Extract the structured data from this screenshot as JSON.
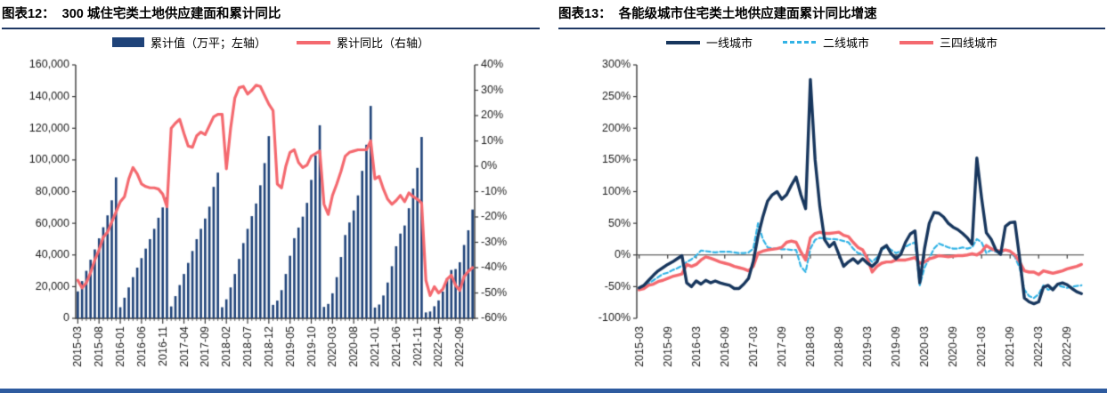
{
  "chart12": {
    "label": "图表12：",
    "title": "300 城住宅类土地供应建面和累计同比",
    "legend": [
      {
        "label": "累计值（万平；左轴）",
        "type": "bar",
        "color": "#1f4379"
      },
      {
        "label": "累计同比（右轴）",
        "type": "line",
        "color": "#f4696f"
      }
    ]
  },
  "chart13": {
    "label": "图表13：",
    "title": "各能级城市住宅类土地供应建面累计同比增速",
    "legend": [
      {
        "label": "一线城市",
        "type": "line",
        "color": "#17365d"
      },
      {
        "label": "二线城市",
        "type": "dash",
        "color": "#33b3e5"
      },
      {
        "label": "三四线城市",
        "type": "line",
        "color": "#f4696f"
      }
    ]
  },
  "accent_colors": {
    "bar_navy": "#1f4379",
    "line_red": "#f4696f",
    "line_navy": "#17365d",
    "line_cyan": "#33b3e5",
    "header_rule": "#1f3864",
    "footer_rule": "#2e5b9f"
  },
  "chart_data": [
    {
      "type": "bar",
      "title": "300 城住宅类土地供应建面和累计同比",
      "x_start": "2015-03",
      "x_end": "2022-12",
      "n_points": 94,
      "x_tick_every": 5,
      "x_tick_labels": [
        "2015-03",
        "2015-08",
        "2016-01",
        "2016-06",
        "2016-11",
        "2017-04",
        "2017-09",
        "2018-02",
        "2018-07",
        "2018-12",
        "2019-05",
        "2019-10",
        "2020-03",
        "2020-08",
        "2021-01",
        "2021-06",
        "2021-11",
        "2022-04",
        "2022-09"
      ],
      "y_left": {
        "label": "累计值（万平）",
        "min": 0,
        "max": 160000,
        "tick_labels": [
          "160,000",
          "140,000",
          "120,000",
          "100,000",
          "80,000",
          "60,000",
          "40,000",
          "20,000",
          "0"
        ]
      },
      "y_right": {
        "label": "累计同比",
        "min": -60,
        "max": 40,
        "tick_labels": [
          "40%",
          "30%",
          "20%",
          "10%",
          "0%",
          "-10%",
          "-20%",
          "-30%",
          "-40%",
          "-50%",
          "-60%"
        ]
      },
      "series": [
        {
          "name": "累计值（万平；左轴）",
          "type": "bar",
          "axis": "left",
          "color": "#1f4379",
          "values": [
            17000,
            23500,
            30000,
            37000,
            43500,
            50500,
            57500,
            65000,
            74500,
            89000,
            7000,
            13000,
            19500,
            26000,
            32000,
            38000,
            44000,
            50000,
            56500,
            63500,
            70000,
            76500,
            7500,
            14000,
            21000,
            28000,
            35000,
            42500,
            50000,
            56500,
            63000,
            70500,
            83000,
            92000,
            7000,
            12000,
            19500,
            28000,
            37500,
            47500,
            56500,
            64500,
            72500,
            84000,
            98000,
            115000,
            8500,
            11200,
            17800,
            28000,
            39500,
            50600,
            57300,
            64200,
            72900,
            87400,
            102900,
            121900,
            7200,
            9100,
            15800,
            26000,
            38700,
            52600,
            60500,
            68100,
            77600,
            93100,
            109600,
            134100,
            6800,
            8700,
            14400,
            22600,
            32900,
            45500,
            53500,
            58600,
            69500,
            81900,
            95000,
            114500,
            3700,
            4300,
            7600,
            11300,
            16900,
            25300,
            30500,
            31100,
            35400,
            46300,
            55600,
            68700
          ]
        },
        {
          "name": "累计同比（右轴）",
          "type": "line",
          "axis": "right",
          "color": "#f4696f",
          "values": [
            -45,
            -48,
            -46,
            -42,
            -37,
            -33,
            -28,
            -26,
            -22,
            -18,
            -14,
            -12,
            -5,
            -0.5,
            -3,
            -7,
            -8,
            -8.5,
            -8.5,
            -9,
            -11,
            -16,
            15,
            17,
            18.5,
            13,
            8,
            7.5,
            12,
            13.5,
            12.5,
            16,
            19.5,
            20.5,
            20.5,
            -1,
            15,
            27,
            31,
            31.5,
            28.5,
            30,
            32,
            31.5,
            28,
            24.5,
            22,
            -7,
            -8.5,
            0,
            5.5,
            6.5,
            1.5,
            -0.5,
            0.5,
            4,
            5,
            6,
            -15,
            -19,
            -11.5,
            -7,
            -2,
            4,
            5.5,
            6,
            6.5,
            6.5,
            6.5,
            10,
            -5,
            -4,
            -9,
            -13,
            -15,
            -13.5,
            -11.5,
            -14,
            -10.5,
            -12,
            -13,
            -14.5,
            -45,
            -51,
            -47.5,
            -50,
            -48.5,
            -44.5,
            -43,
            -47,
            -49,
            -43.5,
            -41.5,
            -40
          ]
        }
      ]
    },
    {
      "type": "line",
      "title": "各能级城市住宅类土地供应建面累计同比增速",
      "x_start": "2015-03",
      "x_end": "2022-12",
      "n_points": 94,
      "x_tick_every": 6,
      "x_tick_labels": [
        "2015-03",
        "2015-09",
        "2016-03",
        "2016-09",
        "2017-03",
        "2017-09",
        "2018-03",
        "2018-09",
        "2019-03",
        "2019-09",
        "2020-03",
        "2020-09",
        "2021-03",
        "2021-09",
        "2022-03",
        "2022-09"
      ],
      "ylim": [
        -100,
        300
      ],
      "y_tick_labels": [
        "300%",
        "250%",
        "200%",
        "150%",
        "100%",
        "50%",
        "0%",
        "-50%",
        "-100%"
      ],
      "series": [
        {
          "name": "一线城市",
          "color": "#17365d",
          "dash": false,
          "values": [
            -52,
            -48,
            -40,
            -32,
            -25,
            -20,
            -15,
            -11,
            -6,
            -1,
            -44,
            -50,
            -41,
            -46,
            -40,
            -44,
            -41,
            -44,
            -46,
            -48,
            -53,
            -53,
            -46,
            -37,
            -10,
            30,
            60,
            85,
            95,
            100,
            88,
            95,
            110,
            123,
            95,
            73,
            277,
            150,
            76,
            24,
            13,
            20,
            1,
            -18,
            -11,
            -6,
            -13,
            -6,
            -13,
            -18,
            -11,
            10,
            15,
            2,
            -6,
            1,
            20,
            33,
            38,
            -44,
            10,
            50,
            67,
            66,
            60,
            50,
            44,
            40,
            34,
            27,
            17,
            153,
            90,
            35,
            25,
            8,
            1,
            45,
            51,
            52,
            -5,
            -68,
            -74,
            -77,
            -74,
            -51,
            -48,
            -55,
            -46,
            -44,
            -47,
            -53,
            -58,
            -61
          ]
        },
        {
          "name": "二线城市",
          "color": "#33b3e5",
          "dash": true,
          "values": [
            -53,
            -50,
            -45,
            -40,
            -35,
            -30,
            -28,
            -24,
            -21,
            -17,
            -11,
            -7,
            -1,
            7,
            6,
            5,
            4,
            5,
            5,
            5,
            4,
            3,
            3,
            4,
            10,
            50,
            25,
            12,
            10,
            10,
            9,
            9,
            8,
            8,
            -18,
            -27,
            10,
            24,
            27,
            26,
            25,
            25,
            24,
            22,
            20,
            10,
            3,
            1,
            -4,
            -11,
            -4,
            8,
            13,
            8,
            3,
            6,
            13,
            17,
            20,
            -48,
            -20,
            -5,
            10,
            18,
            15,
            12,
            10,
            10,
            12,
            10,
            12,
            25,
            20,
            3,
            8,
            5,
            3,
            8,
            5,
            -3,
            -20,
            -55,
            -65,
            -68,
            -62,
            -48,
            -55,
            -52,
            -48,
            -50,
            -52,
            -50,
            -49,
            -48
          ]
        },
        {
          "name": "三四线城市",
          "color": "#f4696f",
          "dash": false,
          "values": [
            -55,
            -53,
            -48,
            -46,
            -42,
            -40,
            -37,
            -34,
            -32,
            -30,
            -15,
            -18,
            -15,
            -8,
            -3,
            -5,
            -8,
            -11,
            -13,
            -15,
            -18,
            -20,
            -22,
            -25,
            -18,
            3,
            6,
            8,
            9,
            10,
            12,
            20,
            22,
            20,
            5,
            -8,
            27,
            34,
            36,
            34,
            34,
            35,
            36,
            31,
            29,
            20,
            12,
            8,
            -6,
            -27,
            -18,
            -13,
            -11,
            -11,
            -8,
            -8,
            -8,
            -6,
            -4,
            -13,
            -11,
            -6,
            -4,
            -1,
            -2,
            -3,
            -2,
            -1,
            -1,
            0,
            2,
            0,
            5,
            15,
            10,
            7,
            6,
            8,
            6,
            0,
            -11,
            -25,
            -27,
            -27,
            -31,
            -25,
            -27,
            -29,
            -27,
            -25,
            -22,
            -20,
            -18,
            -15
          ]
        }
      ]
    }
  ]
}
